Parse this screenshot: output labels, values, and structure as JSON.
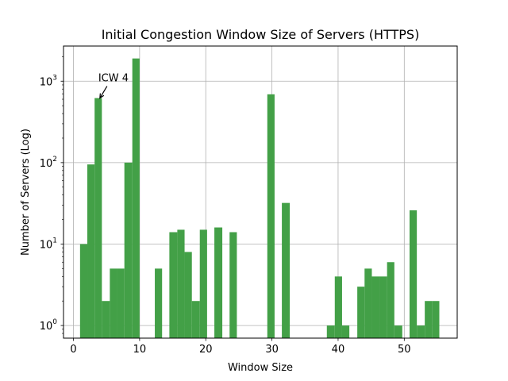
{
  "chart_data": {
    "type": "bar",
    "title": "Initial Congestion Window Size of Servers (HTTPS)",
    "xlabel": "Window Size",
    "ylabel": "Number of Servers (Log)",
    "xlim": [
      -1.5,
      58
    ],
    "ylim": [
      0.7,
      2700
    ],
    "yscale": "log",
    "grid": true,
    "bar_color": "#43a047",
    "x_ticks": [
      0,
      10,
      20,
      30,
      40,
      50
    ],
    "x_tick_labels": [
      "0",
      "10",
      "20",
      "30",
      "40",
      "50"
    ],
    "y_ticks": [
      1,
      10,
      100,
      1000
    ],
    "y_tick_labels": [
      {
        "base": "10",
        "exp": "0"
      },
      {
        "base": "10",
        "exp": "1"
      },
      {
        "base": "10",
        "exp": "2"
      },
      {
        "base": "10",
        "exp": "3"
      }
    ],
    "bars": [
      {
        "x0": 1.0,
        "x1": 2.1,
        "value": 10
      },
      {
        "x0": 2.1,
        "x1": 3.2,
        "value": 95
      },
      {
        "x0": 3.2,
        "x1": 4.3,
        "value": 620
      },
      {
        "x0": 4.3,
        "x1": 5.5,
        "value": 2
      },
      {
        "x0": 5.5,
        "x1": 6.6,
        "value": 5
      },
      {
        "x0": 6.6,
        "x1": 7.7,
        "value": 5
      },
      {
        "x0": 7.7,
        "x1": 8.9,
        "value": 100
      },
      {
        "x0": 8.9,
        "x1": 10.0,
        "value": 1900
      },
      {
        "x0": 12.3,
        "x1": 13.4,
        "value": 5
      },
      {
        "x0": 14.5,
        "x1": 15.7,
        "value": 14
      },
      {
        "x0": 15.7,
        "x1": 16.8,
        "value": 15
      },
      {
        "x0": 16.8,
        "x1": 17.9,
        "value": 8
      },
      {
        "x0": 17.9,
        "x1": 19.1,
        "value": 2
      },
      {
        "x0": 19.1,
        "x1": 20.2,
        "value": 15
      },
      {
        "x0": 21.3,
        "x1": 22.5,
        "value": 16
      },
      {
        "x0": 23.6,
        "x1": 24.7,
        "value": 14
      },
      {
        "x0": 29.3,
        "x1": 30.4,
        "value": 690
      },
      {
        "x0": 31.5,
        "x1": 32.7,
        "value": 32
      },
      {
        "x0": 38.3,
        "x1": 39.5,
        "value": 1
      },
      {
        "x0": 39.5,
        "x1": 40.6,
        "value": 4
      },
      {
        "x0": 40.6,
        "x1": 41.7,
        "value": 1
      },
      {
        "x0": 42.9,
        "x1": 44.0,
        "value": 3
      },
      {
        "x0": 44.0,
        "x1": 45.1,
        "value": 5
      },
      {
        "x0": 45.1,
        "x1": 46.3,
        "value": 4
      },
      {
        "x0": 46.3,
        "x1": 47.4,
        "value": 4
      },
      {
        "x0": 47.4,
        "x1": 48.5,
        "value": 6
      },
      {
        "x0": 48.5,
        "x1": 49.7,
        "value": 1
      },
      {
        "x0": 50.8,
        "x1": 51.9,
        "value": 26
      },
      {
        "x0": 51.9,
        "x1": 53.1,
        "value": 1
      },
      {
        "x0": 53.1,
        "x1": 54.2,
        "value": 2
      },
      {
        "x0": 54.2,
        "x1": 55.3,
        "value": 2
      }
    ],
    "annotation": {
      "text": "ICW 4",
      "x": 4,
      "y": 620
    }
  }
}
